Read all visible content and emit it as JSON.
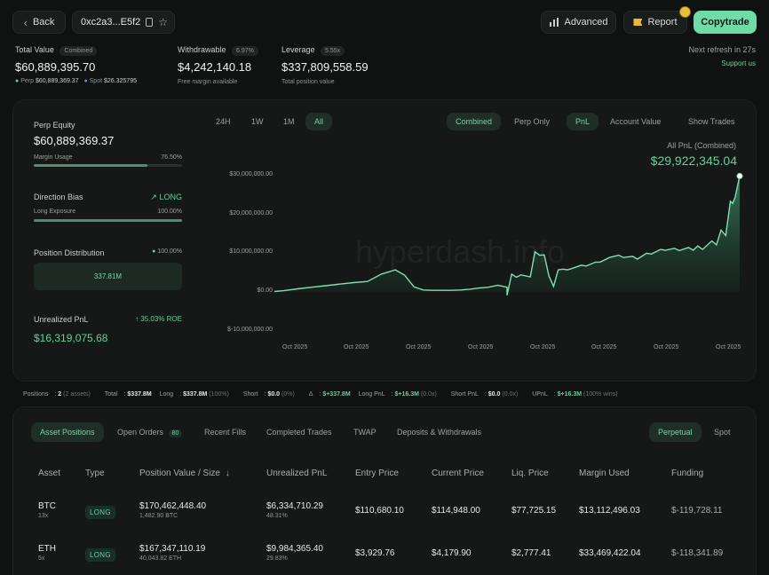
{
  "topbar": {
    "back_label": "Back",
    "address": "0xc2a3...E5f2",
    "advanced_label": "Advanced",
    "report_label": "Report",
    "copytrade_label": "Copytrade"
  },
  "summary": {
    "total_value_label": "Total Value",
    "total_value_tag": "Combined",
    "total_value": "$60,889,395.70",
    "perp_label": "Perp",
    "perp_value": "$60,889,369.37",
    "spot_label": "Spot",
    "spot_value": "$26.325795",
    "withdrawable_label": "Withdrawable",
    "withdrawable_pct": "6.97%",
    "withdrawable_value": "$4,242,140.18",
    "withdrawable_sub": "Free margin available",
    "leverage_label": "Leverage",
    "leverage_tag": "5.55x",
    "leverage_value": "$337,809,558.59",
    "leverage_sub": "Total position value",
    "refresh_text": "Next refresh in 27s",
    "support_label": "Support us"
  },
  "left": {
    "perp_equity_label": "Perp Equity",
    "perp_equity_value": "$60,889,369.37",
    "margin_usage_label": "Margin Usage",
    "margin_usage_value": "76.50%",
    "margin_usage_frac": 0.765,
    "direction_label": "Direction Bias",
    "direction_value": "LONG",
    "long_exposure_label": "Long Exposure",
    "long_exposure_value": "100.00%",
    "long_exposure_frac": 1.0,
    "position_dist_label": "Position Distribution",
    "position_dist_value": "100.00%",
    "position_dist_amount": "337.81M",
    "unrealized_label": "Unrealized PnL",
    "unrealized_roe": "35.03% ROE",
    "unrealized_value": "$16,319,075.68"
  },
  "chart_controls": {
    "ranges": [
      "24H",
      "1W",
      "1M",
      "All"
    ],
    "modes": [
      "Combined",
      "Perp Only"
    ],
    "metrics": [
      "PnL",
      "Account Value"
    ],
    "show_trades": "Show Trades",
    "all_pnl_label": "All PnL (Combined)",
    "all_pnl_value": "$29,922,345.04",
    "watermark": "hyperdash.info"
  },
  "chart_data": {
    "type": "area",
    "title": "All PnL (Combined)",
    "xlabel": "",
    "ylabel": "",
    "ylim": [
      -10000000,
      30000000
    ],
    "yticks": [
      "$30,000,000.00",
      "$20,000,000.00",
      "$10,000,000.00",
      "$0.00",
      "$-10,000,000.00"
    ],
    "ytick_values": [
      30000000,
      20000000,
      10000000,
      0,
      -10000000
    ],
    "xticks": [
      "Oct 2025",
      "Oct 2025",
      "Oct 2025",
      "Oct 2025",
      "Oct 2025",
      "Oct 2025",
      "Oct 2025",
      "Oct 2025"
    ],
    "x": [
      0,
      0.02,
      0.05,
      0.08,
      0.11,
      0.14,
      0.17,
      0.2,
      0.23,
      0.26,
      0.28,
      0.3,
      0.32,
      0.34,
      0.36,
      0.38,
      0.4,
      0.42,
      0.44,
      0.46,
      0.48,
      0.5,
      0.5,
      0.51,
      0.52,
      0.53,
      0.55,
      0.56,
      0.57,
      0.58,
      0.59,
      0.6,
      0.61,
      0.62,
      0.63,
      0.64,
      0.66,
      0.67,
      0.69,
      0.7,
      0.72,
      0.74,
      0.75,
      0.77,
      0.78,
      0.8,
      0.81,
      0.83,
      0.84,
      0.86,
      0.87,
      0.89,
      0.9,
      0.91,
      0.92,
      0.94,
      0.95,
      0.96,
      0.97,
      0.98,
      0.985,
      0.99,
      1.0
    ],
    "values": [
      0,
      200000,
      700000,
      1100000,
      1500000,
      1900000,
      2300000,
      2600000,
      4500000,
      5600000,
      4200000,
      1200000,
      400000,
      300000,
      300000,
      300000,
      400000,
      600000,
      900000,
      1100000,
      1600000,
      1100000,
      -1000000,
      4500000,
      3700000,
      4300000,
      3800000,
      10300000,
      9400000,
      9500000,
      4000000,
      1300000,
      5600000,
      5800000,
      5600000,
      6000000,
      6800000,
      6600000,
      7600000,
      7600000,
      8800000,
      9400000,
      8800000,
      9100000,
      8400000,
      9900000,
      9700000,
      10900000,
      10700000,
      11200000,
      10600000,
      11400000,
      10700000,
      11800000,
      10900000,
      13100000,
      12100000,
      15900000,
      14500000,
      23400000,
      22800000,
      24400000,
      29900000
    ]
  },
  "stats": {
    "positions_label": "Positions",
    "positions_count": "2",
    "positions_sub": "(2 assets)",
    "total_label": "Total",
    "total_value": "$337.8M",
    "long_label": "Long",
    "long_value": "$337.8M",
    "long_pct": "(100%)",
    "short_label": "Short",
    "short_value": "$0.0",
    "short_pct": "(0%)",
    "delta_label": "Δ",
    "delta_value": "$+337.8M",
    "longpnl_label": "Long PnL",
    "longpnl_value": "$+16.3M",
    "longpnl_sub": "(0.0x)",
    "shortpnl_label": "Short PnL",
    "shortpnl_value": "$0.0",
    "shortpnl_sub": "(0.0x)",
    "upnl_label": "UPnL",
    "upnl_value": "$+16.3M",
    "upnl_sub": "(100% wins)"
  },
  "tabs": {
    "items": [
      "Asset Positions",
      "Open Orders",
      "Recent Fills",
      "Completed Trades",
      "TWAP",
      "Deposits & Withdrawals"
    ],
    "open_orders_count": "80",
    "market_items": [
      "Perpetual",
      "Spot"
    ]
  },
  "table": {
    "headers": [
      "Asset",
      "Type",
      "Position Value / Size",
      "Unrealized PnL",
      "Entry Price",
      "Current Price",
      "Liq. Price",
      "Margin Used",
      "Funding"
    ],
    "rows": [
      {
        "asset": "BTC",
        "leverage": "13x",
        "type": "LONG",
        "value": "$170,462,448.40",
        "size": "1,482.90 BTC",
        "pnl": "$6,334,710.29",
        "pnl_pct": "48.31%",
        "entry": "$110,680.10",
        "current": "$114,948.00",
        "liq": "$77,725.15",
        "margin": "$13,112,496.03",
        "funding": "$-119,728.11"
      },
      {
        "asset": "ETH",
        "leverage": "5x",
        "type": "LONG",
        "value": "$167,347,110.19",
        "size": "40,043.82 ETH",
        "pnl": "$9,984,365.40",
        "pnl_pct": "29.83%",
        "entry": "$3,929.76",
        "current": "$4,179.90",
        "liq": "$2,777.41",
        "margin": "$33,469,422.04",
        "funding": "$-118,341.89"
      }
    ]
  },
  "colors": {
    "accent": "#5ed29b",
    "background": "#101211",
    "panel": "#151817"
  }
}
